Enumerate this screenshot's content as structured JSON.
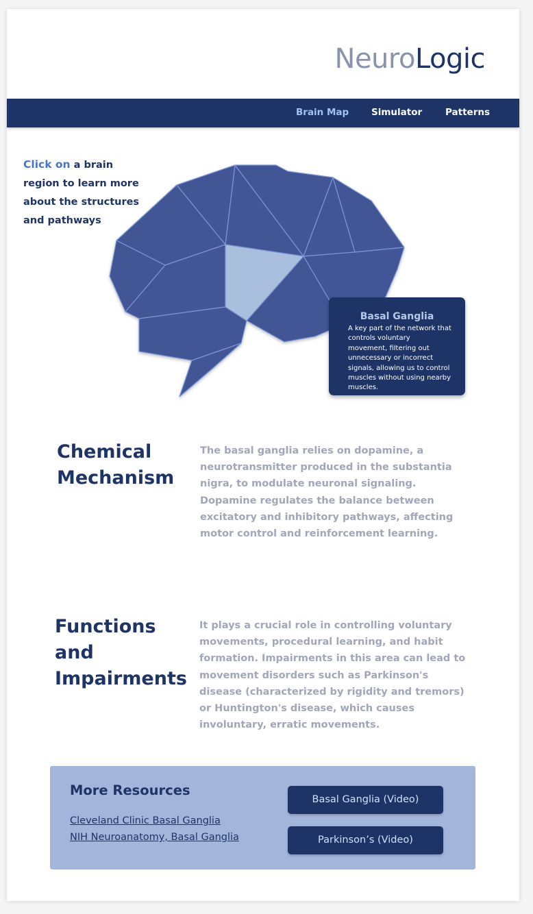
{
  "brand": {
    "part1": "Neuro",
    "part2": "Logic"
  },
  "nav": {
    "items": [
      {
        "label": "Brain Map",
        "active": true
      },
      {
        "label": "Simulator",
        "active": false
      },
      {
        "label": "Patterns",
        "active": false
      }
    ]
  },
  "intro": {
    "highlight": "Click on",
    "rest": " a brain region to learn more about the structures and pathways"
  },
  "tooltip": {
    "title": "Basal Ganglia",
    "body": "A key part of the network that controls voluntary movement, filtering out unnecessary or incorrect signals, allowing us to control muscles without using nearby muscles."
  },
  "sections": [
    {
      "title": "Chemical Mechanism",
      "body": "The basal ganglia relies on dopamine, a neurotransmitter produced in the substantia nigra, to modulate neuronal signaling. Dopamine regulates the balance between excitatory and inhibitory pathways, affecting motor control and reinforcement learning."
    },
    {
      "title": "Functions and Impairments",
      "body": "It plays a crucial role in controlling voluntary movements, procedural learning, and habit formation. Impairments in this area can lead to movement disorders such as Parkinson's disease (characterized by rigidity and tremors) or Huntington's disease, which causes involuntary, erratic movements."
    }
  ],
  "resources": {
    "title": "More Resources",
    "links": [
      "Cleveland Clinic Basal Ganglia",
      "NIH Neuroanatomy, Basal Ganglia"
    ],
    "buttons": [
      "Basal Ganglia (Video)",
      "Parkinson’s (Video)"
    ]
  },
  "colors": {
    "navy": "#1f3466",
    "brain": "#425796",
    "brain_selected": "#a9bfdd",
    "accent": "#4a74c8",
    "panel": "#a3b5db"
  }
}
